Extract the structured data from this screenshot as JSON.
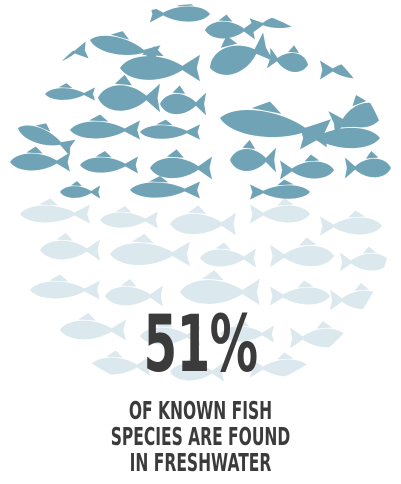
{
  "stat": {
    "value": "51%",
    "caption_lines": [
      "OF KNOWN FISH",
      "SPECIES ARE FOUND",
      "IN FRESHWATER"
    ]
  },
  "colors": {
    "fish_upper": "#6fa3b5",
    "fish_lower": "#dbe8ed",
    "text": "#3b3b3b",
    "background": "#ffffff"
  },
  "illustration": {
    "icon": "fish-silhouette-circle-icon"
  }
}
